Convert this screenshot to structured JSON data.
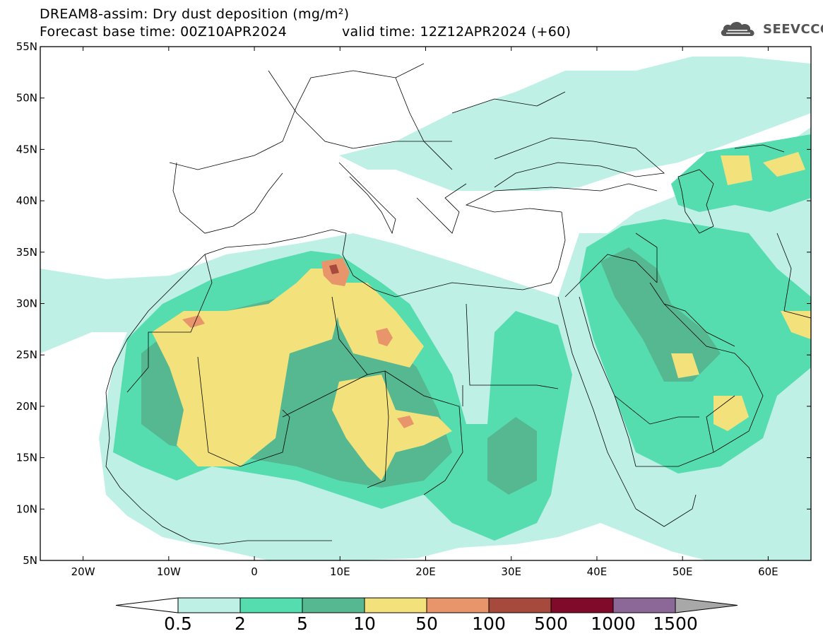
{
  "header": {
    "title": "DREAM8-assim: Dry dust deposition (mg/m²)",
    "base_time": "Forecast base time: 00Z10APR2024",
    "valid_time": "valid time: 12Z12APR2024 (+60)",
    "logo_text": "SEEVCCC"
  },
  "map": {
    "lon_range": [
      -25,
      65
    ],
    "lat_range": [
      5,
      55
    ],
    "lat_ticks": [
      "55N",
      "50N",
      "45N",
      "40N",
      "35N",
      "30N",
      "25N",
      "20N",
      "15N",
      "10N",
      "5N"
    ],
    "lon_ticks": [
      "20W",
      "10W",
      "0",
      "10E",
      "20E",
      "30E",
      "40E",
      "50E",
      "60E"
    ]
  },
  "colorbar": {
    "labels": [
      "0.5",
      "2",
      "5",
      "10",
      "50",
      "100",
      "500",
      "1000",
      "1500"
    ],
    "colors": [
      "#ffffff",
      "#bff0e6",
      "#55ddb0",
      "#55b891",
      "#f3e27c",
      "#e8956b",
      "#a64a3e",
      "#7f0a2a",
      "#8c6898",
      "#a8a8a8"
    ]
  }
}
